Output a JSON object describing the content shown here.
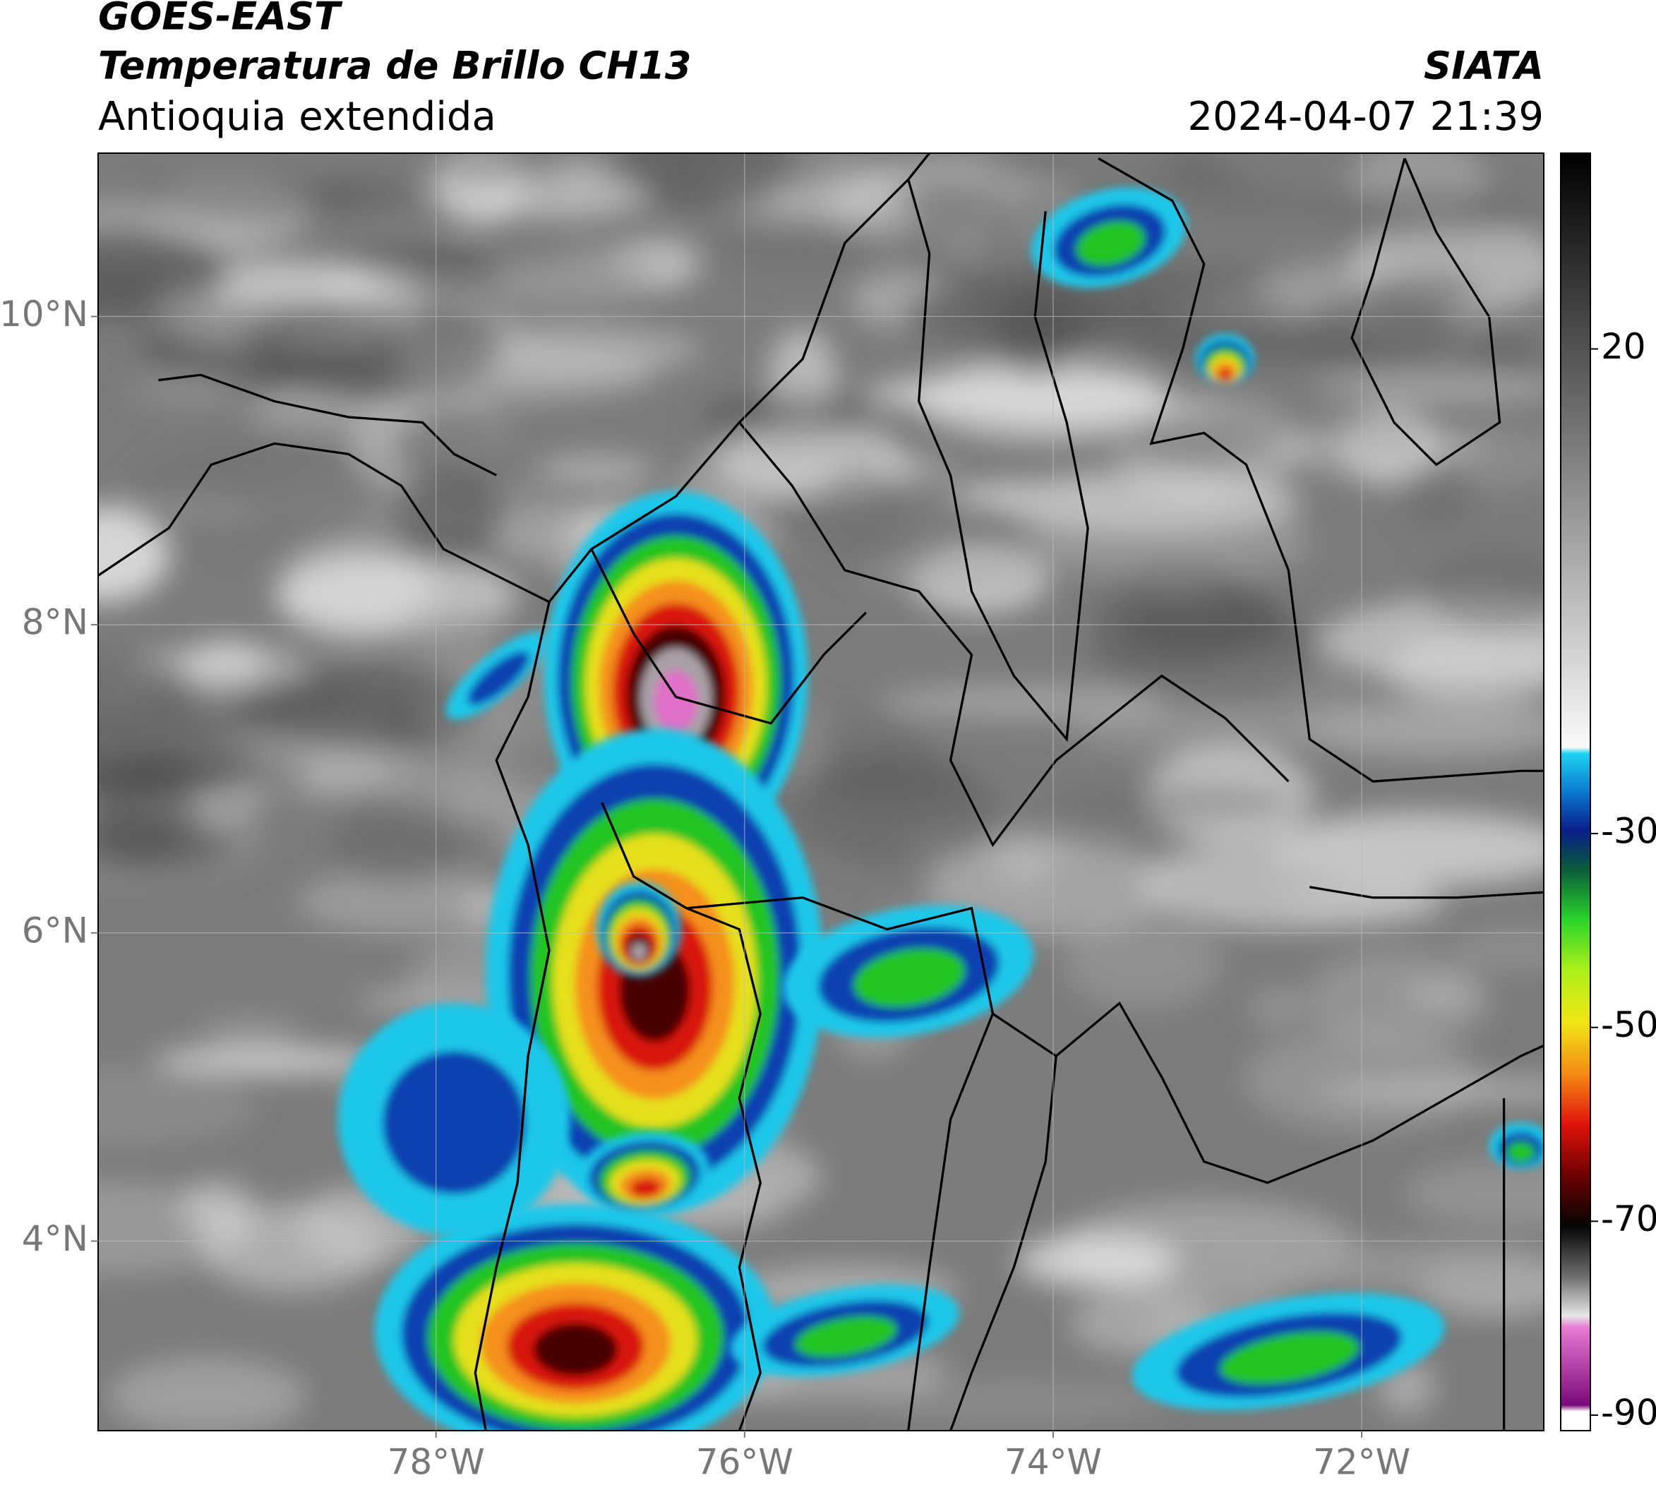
{
  "header": {
    "title": "GOES-EAST",
    "subtitle": "Temperatura de Brillo CH13",
    "region": "Antioquia extendida",
    "source": "SIATA",
    "timestamp": "2024-04-07 21:39"
  },
  "map": {
    "lon_range": [
      -80.19,
      -70.82
    ],
    "lat_range": [
      2.77,
      11.06
    ],
    "lon_ticks": [
      {
        "value": -78,
        "label": "78°W"
      },
      {
        "value": -76,
        "label": "76°W"
      },
      {
        "value": -74,
        "label": "74°W"
      },
      {
        "value": -72,
        "label": "72°W"
      }
    ],
    "lat_ticks": [
      {
        "value": 10,
        "label": "10°N"
      },
      {
        "value": 8,
        "label": "8°N"
      },
      {
        "value": 6,
        "label": "6°N"
      },
      {
        "value": 4,
        "label": "4°N"
      }
    ]
  },
  "colorbar": {
    "range": [
      -91.6,
      40.2
    ],
    "ticks": [
      20,
      -30,
      -50,
      -70,
      -90
    ]
  }
}
